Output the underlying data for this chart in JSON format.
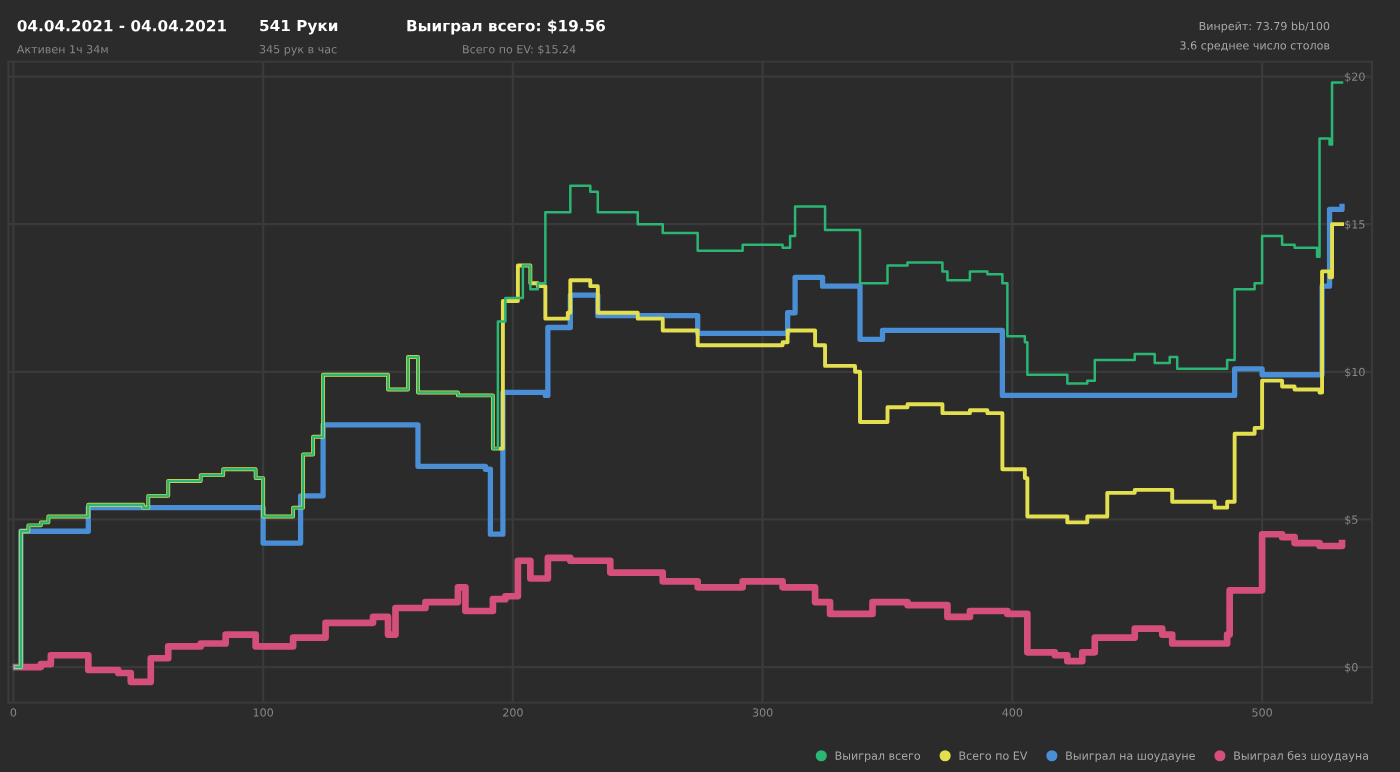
{
  "chart_data": {
    "type": "step",
    "annotations": [
      "04.04.2021 - 04.04.2021",
      "Активен 1ч 34м",
      "541 Руки",
      "345 рук в час",
      "Выиграл всего: $19.56",
      "Всего по EV: $15.24",
      "Винрейт: 73.79 bb/100",
      "3.6 среднее число столов"
    ],
    "xlim": [
      -2,
      544
    ],
    "xticks": [
      0,
      100,
      200,
      300,
      400,
      500
    ],
    "ylim": [
      -1.2,
      20.5
    ],
    "yticks": [
      {
        "value": 0,
        "label": "$0"
      },
      {
        "value": 5,
        "label": "$5"
      },
      {
        "value": 10,
        "label": "$10"
      },
      {
        "value": 15,
        "label": "$15"
      },
      {
        "value": 20,
        "label": "$20"
      }
    ],
    "grid": true,
    "legend": "bottom right",
    "line_style": "solid",
    "series": [
      {
        "name": "Выиграл всего",
        "color": "#2bb673",
        "x": [
          1,
          3,
          6,
          11,
          14,
          28,
          30,
          52,
          54,
          62,
          75,
          84,
          97,
          100,
          112,
          116,
          120,
          124,
          144,
          150,
          158,
          162,
          178,
          186,
          192,
          194,
          197,
          204,
          207,
          210,
          213,
          222,
          223,
          231,
          234,
          250,
          260,
          274,
          292,
          308,
          311,
          313,
          321,
          325,
          337,
          339,
          350,
          358,
          372,
          374,
          383,
          390,
          396,
          398,
          405,
          406,
          422,
          430,
          433,
          449,
          457,
          463,
          466,
          481,
          486,
          489,
          497,
          500,
          508,
          513,
          522,
          523,
          527,
          528,
          532
        ],
        "values": [
          0,
          4.6,
          4.8,
          4.9,
          5.1,
          5.1,
          5.5,
          5.4,
          5.8,
          6.3,
          6.5,
          6.7,
          6.4,
          5.1,
          5.4,
          7.2,
          7.8,
          9.9,
          9.9,
          9.4,
          10.5,
          9.3,
          9.2,
          9.2,
          7.4,
          11.7,
          12.5,
          13.6,
          12.8,
          13.0,
          15.4,
          15.4,
          16.3,
          16.1,
          15.4,
          15.0,
          14.7,
          14.1,
          14.3,
          14.2,
          14.6,
          15.6,
          15.6,
          14.8,
          14.8,
          13.0,
          13.6,
          13.7,
          13.4,
          13.1,
          13.4,
          13.3,
          13.0,
          11.2,
          11.0,
          9.9,
          9.6,
          9.7,
          10.4,
          10.6,
          10.3,
          10.5,
          10.1,
          10.1,
          10.4,
          12.8,
          13.0,
          14.6,
          14.3,
          14.2,
          13.9,
          17.9,
          17.7,
          19.8,
          19.8
        ]
      },
      {
        "name": "Всего по EV",
        "color": "#e3df4f",
        "x": [
          1,
          3,
          6,
          11,
          14,
          28,
          30,
          52,
          54,
          62,
          75,
          84,
          97,
          100,
          112,
          116,
          120,
          124,
          144,
          150,
          158,
          162,
          178,
          186,
          192,
          196,
          202,
          207,
          210,
          213,
          222,
          223,
          231,
          234,
          250,
          260,
          274,
          308,
          310,
          321,
          325,
          337,
          339,
          350,
          358,
          372,
          383,
          390,
          396,
          405,
          406,
          422,
          430,
          438,
          449,
          464,
          481,
          486,
          489,
          497,
          500,
          508,
          513,
          523,
          524,
          527,
          528,
          532
        ],
        "values": [
          0,
          4.6,
          4.8,
          4.9,
          5.1,
          5.1,
          5.5,
          5.4,
          5.8,
          6.3,
          6.5,
          6.7,
          6.4,
          5.1,
          5.4,
          7.2,
          7.8,
          9.9,
          9.9,
          9.4,
          10.5,
          9.3,
          9.2,
          9.2,
          7.4,
          12.4,
          13.6,
          13.0,
          12.9,
          11.8,
          12.0,
          13.1,
          12.9,
          12.0,
          11.8,
          11.4,
          10.9,
          11.0,
          11.4,
          10.9,
          10.2,
          10.0,
          8.3,
          8.8,
          8.9,
          8.6,
          8.7,
          8.6,
          6.7,
          6.4,
          5.1,
          4.9,
          5.1,
          5.9,
          6.0,
          5.6,
          5.4,
          5.6,
          7.9,
          8.1,
          9.7,
          9.5,
          9.4,
          9.3,
          13.4,
          13.2,
          15.0,
          15.0
        ]
      },
      {
        "name": "Выиграл на шоудауне",
        "color": "#4a8fd6",
        "x": [
          1,
          3,
          28,
          30,
          85,
          100,
          113,
          115,
          123,
          124,
          160,
          162,
          189,
          191,
          194,
          196,
          213,
          214,
          222,
          223,
          233,
          234,
          274,
          308,
          310,
          313,
          323,
          324,
          337,
          339,
          348,
          390,
          396,
          486,
          489,
          498,
          500,
          513,
          522,
          524,
          527,
          532
        ],
        "values": [
          0,
          4.6,
          4.6,
          5.4,
          5.4,
          4.2,
          4.2,
          5.8,
          5.8,
          8.2,
          8.2,
          6.8,
          6.7,
          4.5,
          4.5,
          9.3,
          9.2,
          11.5,
          11.5,
          12.6,
          12.6,
          11.9,
          11.3,
          11.3,
          12.0,
          13.2,
          13.2,
          12.9,
          12.9,
          11.1,
          11.4,
          11.4,
          9.2,
          9.2,
          10.1,
          10.1,
          9.9,
          9.9,
          9.9,
          12.9,
          15.5,
          15.6
        ]
      },
      {
        "name": "Выиграл без шоудауна",
        "color": "#d4507a",
        "x": [
          1,
          6,
          11,
          15,
          28,
          30,
          42,
          47,
          54,
          55,
          62,
          75,
          85,
          97,
          112,
          125,
          144,
          150,
          153,
          165,
          176,
          178,
          181,
          192,
          197,
          202,
          207,
          214,
          223,
          239,
          260,
          274,
          292,
          308,
          321,
          327,
          340,
          344,
          358,
          374,
          383,
          398,
          406,
          417,
          422,
          428,
          433,
          449,
          460,
          464,
          481,
          486,
          487,
          497,
          500,
          508,
          513,
          523,
          532
        ],
        "values": [
          0,
          0,
          0.1,
          0.4,
          0.4,
          -0.1,
          -0.2,
          -0.5,
          -0.5,
          0.3,
          0.7,
          0.8,
          1.1,
          0.7,
          1.0,
          1.5,
          1.7,
          1.1,
          2.0,
          2.2,
          2.2,
          2.7,
          1.9,
          2.3,
          2.4,
          3.6,
          3.0,
          3.7,
          3.6,
          3.2,
          2.9,
          2.7,
          2.9,
          2.7,
          2.2,
          1.8,
          1.8,
          2.2,
          2.1,
          1.7,
          1.9,
          1.8,
          0.5,
          0.4,
          0.2,
          0.5,
          1.0,
          1.3,
          1.1,
          0.8,
          0.8,
          1.1,
          2.6,
          2.6,
          4.5,
          4.4,
          4.2,
          4.1,
          4.2
        ]
      }
    ]
  }
}
